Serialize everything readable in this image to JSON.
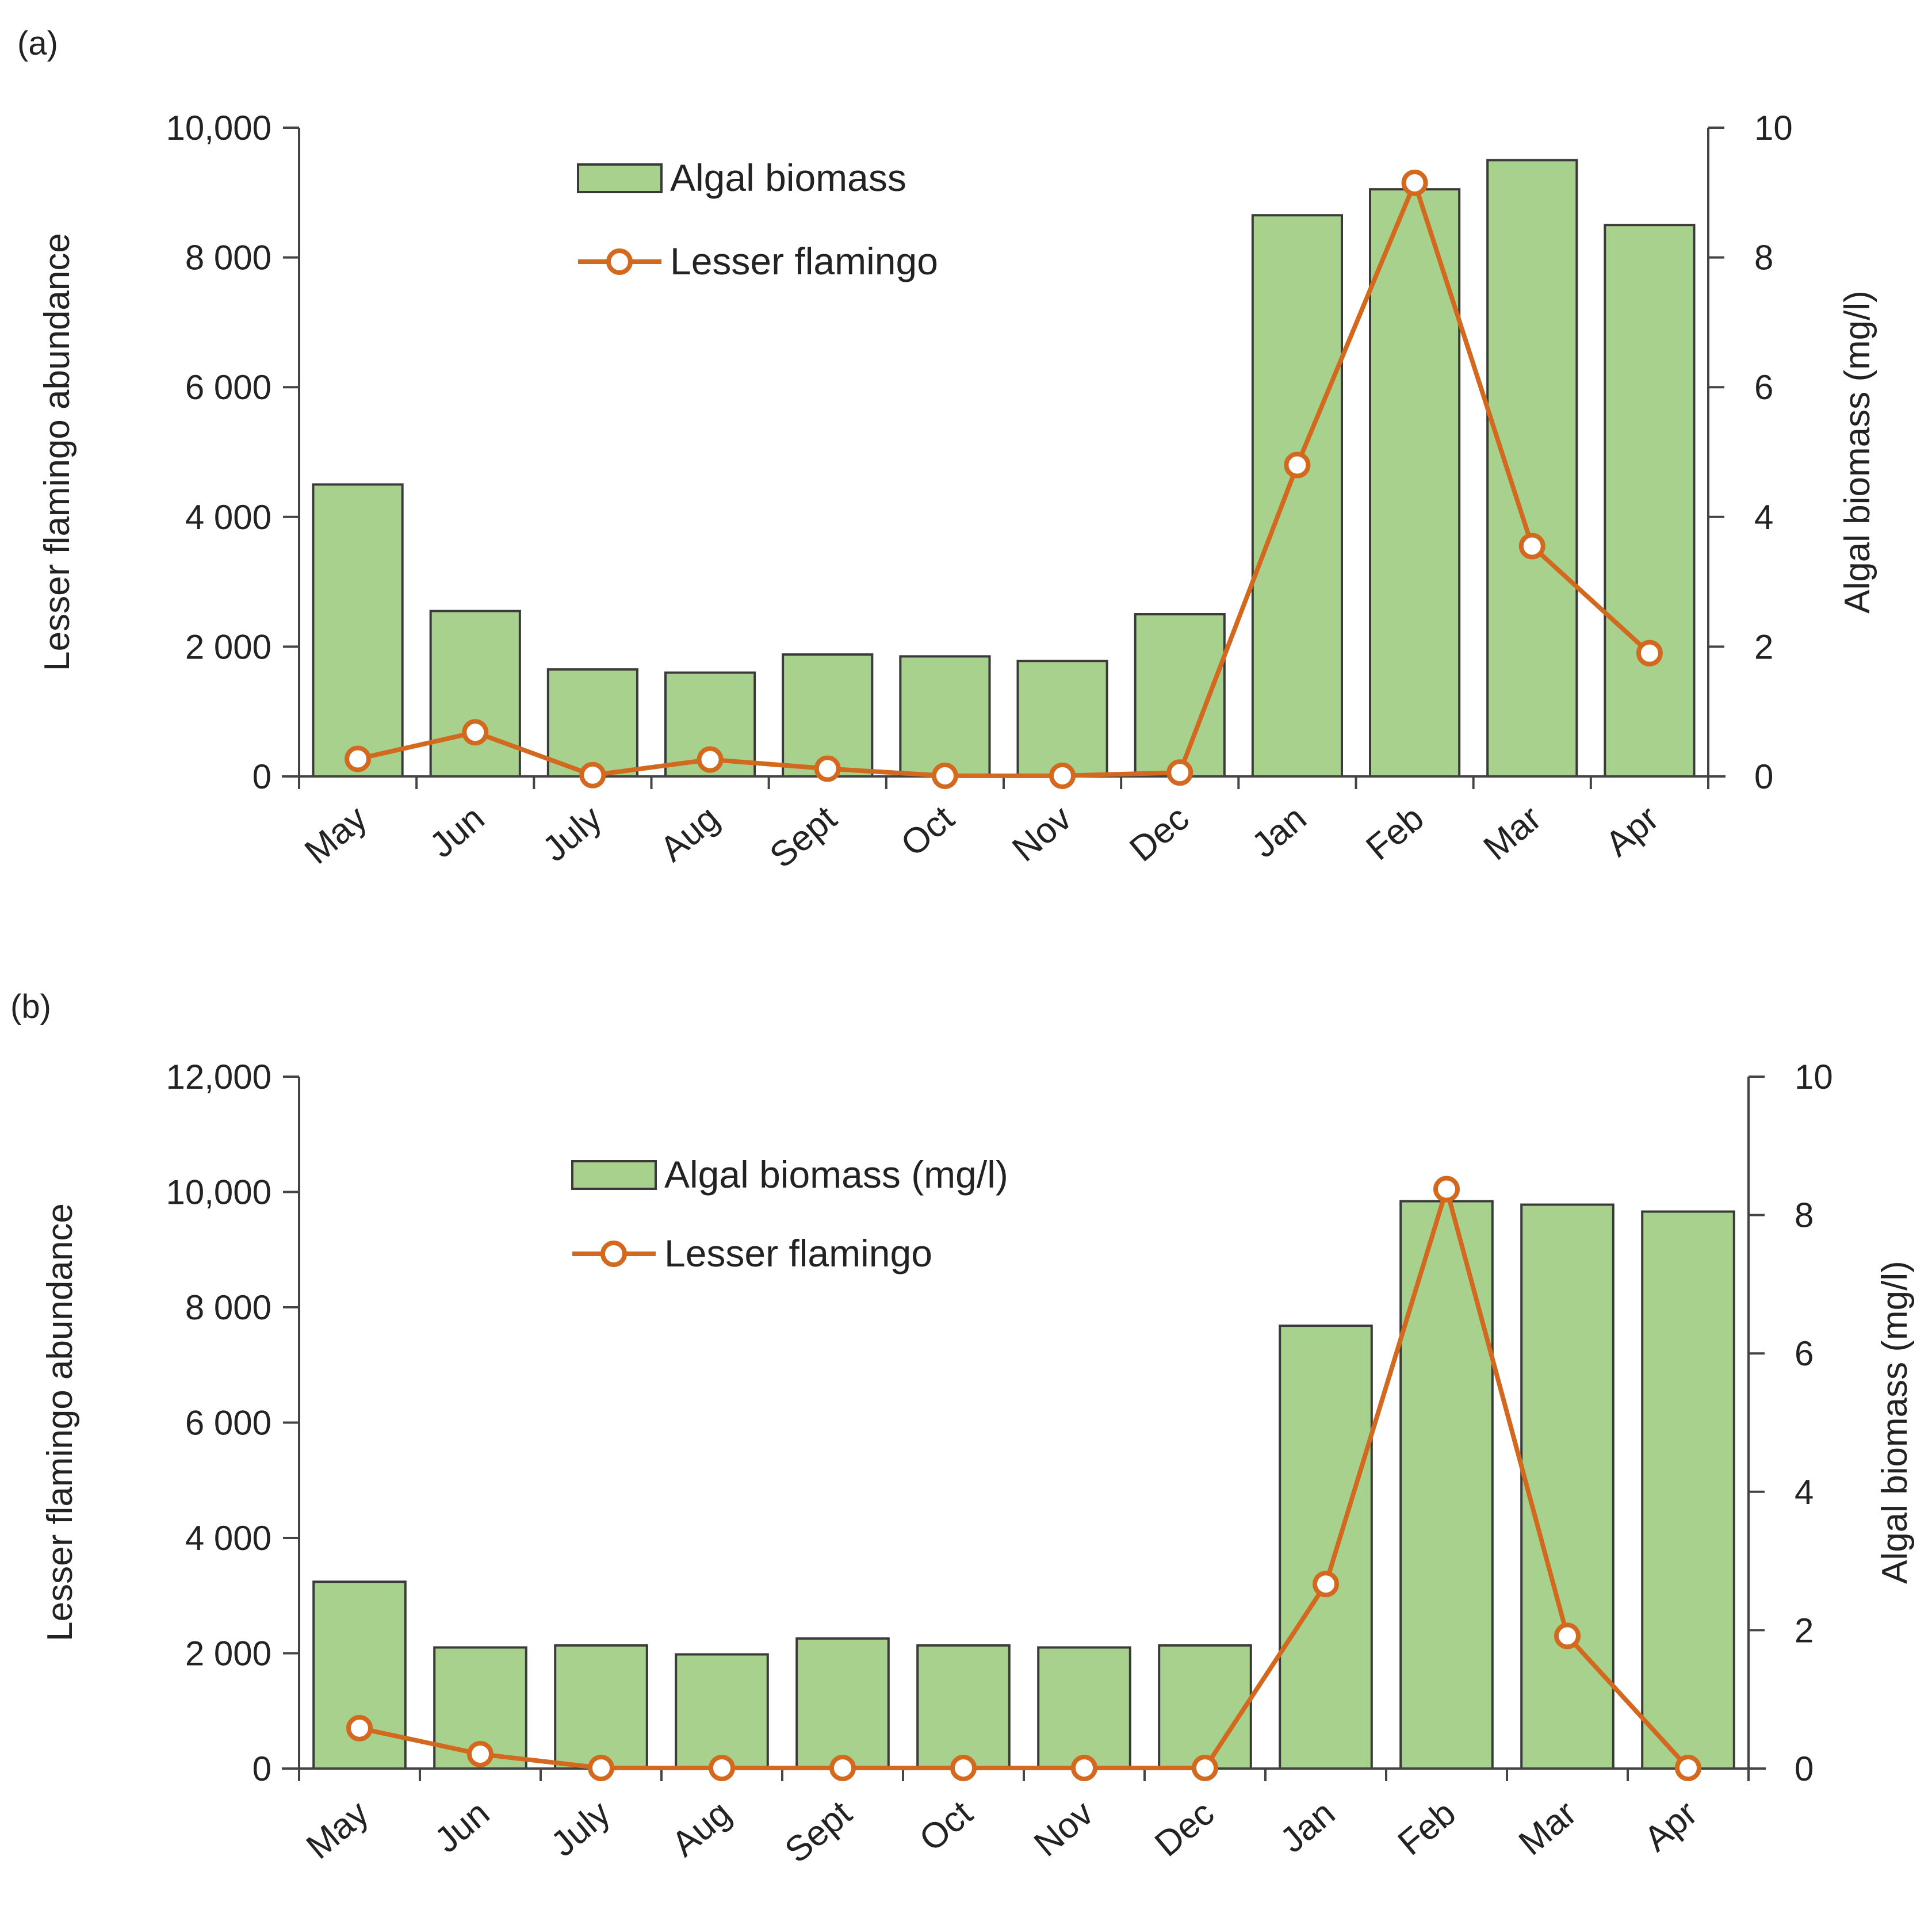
{
  "colors": {
    "bar_fill": "#a9d18e",
    "bar_stroke": "#3a3a3a",
    "line": "#d2691e",
    "marker_fill": "#ffffff",
    "axis": "#444444"
  },
  "chart_data": [
    {
      "type": "bar+line",
      "panel_label": "(a)",
      "categories": [
        "May",
        "Jun",
        "July",
        "Aug",
        "Sept",
        "Oct",
        "Nov",
        "Dec",
        "Jan",
        "Feb",
        "Mar",
        "Apr"
      ],
      "series": [
        {
          "name": "Algal biomass",
          "kind": "bar",
          "axis": "right",
          "values": [
            4.5,
            2.55,
            1.65,
            1.6,
            1.88,
            1.85,
            1.78,
            2.5,
            8.65,
            9.05,
            9.5,
            8.5
          ]
        },
        {
          "name": "Lesser flamingo",
          "kind": "line",
          "axis": "left",
          "values": [
            270,
            680,
            20,
            260,
            120,
            10,
            10,
            60,
            4800,
            9150,
            3550,
            1900
          ]
        }
      ],
      "left_axis": {
        "label": "Lesser flamingo abundance",
        "ylim": [
          0,
          10000
        ],
        "ticks": [
          0,
          2000,
          4000,
          6000,
          8000,
          10000
        ],
        "tick_labels": [
          "0",
          "2 000",
          "4 000",
          "6 000",
          "8 000",
          "10,000"
        ]
      },
      "right_axis": {
        "label": "Algal biomass (mg/l)",
        "ylim": [
          0,
          10
        ],
        "ticks": [
          0,
          2,
          4,
          6,
          8,
          10
        ],
        "tick_labels": [
          "0",
          "2",
          "4",
          "6",
          "8",
          "10"
        ]
      },
      "legend": {
        "position": "top-center",
        "bar_label": "Algal biomass",
        "line_label": "Lesser flamingo"
      }
    },
    {
      "type": "bar+line",
      "panel_label": "(b)",
      "categories": [
        "May",
        "Jun",
        "July",
        "Aug",
        "Sept",
        "Oct",
        "Nov",
        "Dec",
        "Jan",
        "Feb",
        "Mar",
        "Apr"
      ],
      "series": [
        {
          "name": "Algal biomass (mg/l)",
          "kind": "bar",
          "axis": "right",
          "values": [
            2.7,
            1.75,
            1.78,
            1.65,
            1.88,
            1.78,
            1.75,
            1.78,
            6.4,
            8.2,
            8.15,
            8.05
          ]
        },
        {
          "name": "Lesser flamingo",
          "kind": "line",
          "axis": "left",
          "values": [
            700,
            250,
            10,
            10,
            10,
            10,
            10,
            10,
            3200,
            10050,
            2300,
            10
          ]
        }
      ],
      "left_axis": {
        "label": "Lesser flamingo abundance",
        "ylim": [
          0,
          12000
        ],
        "ticks": [
          0,
          2000,
          4000,
          6000,
          8000,
          10000,
          12000
        ],
        "tick_labels": [
          "0",
          "2 000",
          "4 000",
          "6 000",
          "8 000",
          "10,000",
          "12,000"
        ]
      },
      "right_axis": {
        "label": "Algal biomass (mg/l)",
        "ylim": [
          0,
          10
        ],
        "ticks": [
          0,
          2,
          4,
          6,
          8,
          10
        ],
        "tick_labels": [
          "0",
          "2",
          "4",
          "6",
          "8",
          "10"
        ]
      },
      "legend": {
        "position": "top-center",
        "bar_label": "Algal biomass (mg/l)",
        "line_label": "Lesser flamingo"
      }
    }
  ]
}
